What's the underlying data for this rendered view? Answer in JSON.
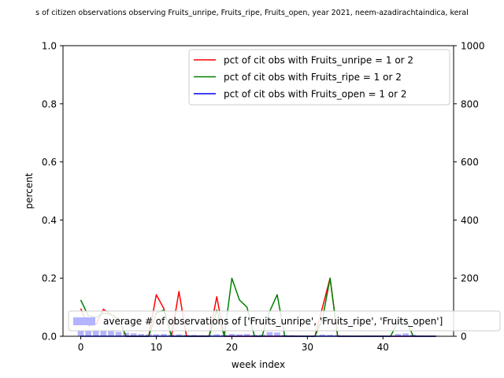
{
  "chart_data": {
    "type": "line",
    "title": "s of citizen observations observing Fruits_unripe, Fruits_ripe, Fruits_open, year 2021, neem-azadirachtaindica, keral",
    "xlabel": "week index",
    "ylabel": "percent",
    "xlim": [
      -2.35,
      49.35
    ],
    "ylim": [
      0,
      1
    ],
    "y2lim": [
      0,
      1000
    ],
    "x_ticks": [
      0,
      10,
      20,
      30,
      40
    ],
    "y_ticks": [
      0.0,
      0.2,
      0.4,
      0.6,
      0.8,
      1.0
    ],
    "y2_ticks": [
      0,
      200,
      400,
      600,
      800,
      1000
    ],
    "x_tick_labels": [
      "0",
      "10",
      "20",
      "30",
      "40"
    ],
    "y_tick_labels": [
      "0.0",
      "0.2",
      "0.4",
      "0.6",
      "0.8",
      "1.0"
    ],
    "y2_tick_labels": [
      "0",
      "200",
      "400",
      "600",
      "800",
      "1000"
    ],
    "x": [
      0,
      1,
      2,
      3,
      4,
      5,
      6,
      7,
      8,
      9,
      10,
      11,
      12,
      13,
      14,
      15,
      16,
      17,
      18,
      19,
      20,
      21,
      22,
      23,
      24,
      25,
      26,
      27,
      28,
      29,
      30,
      31,
      32,
      33,
      34,
      35,
      36,
      37,
      38,
      39,
      40,
      41,
      42,
      43,
      44,
      45,
      46,
      47
    ],
    "series": [
      {
        "name": "pct of cit obs with Fruits_unripe = 1 or 2",
        "color": "#ff0000",
        "values": [
          0.095,
          0.035,
          0.04,
          0.093,
          0.075,
          0.06,
          0.0,
          0.0,
          0.0,
          0.0,
          0.143,
          0.095,
          0.0,
          0.154,
          0.0,
          0.0,
          0.0,
          0.0,
          0.136,
          0.0,
          0.0,
          0.0,
          0.0,
          0.0,
          0.0,
          0.0,
          0.0,
          0.0,
          0.0,
          0.0,
          0.0,
          0.0,
          0.1,
          0.2,
          0.0,
          0.0,
          0.0,
          0.0,
          0.0,
          0.0,
          0.0,
          0.0,
          0.0,
          0.0,
          0.0,
          0.0,
          0.0,
          0.0
        ]
      },
      {
        "name": "pct of cit obs with Fruits_ripe = 1 or 2",
        "color": "#008000",
        "values": [
          0.125,
          0.07,
          0.065,
          0.08,
          0.075,
          0.06,
          0.0,
          0.0,
          0.0,
          0.0,
          0.08,
          0.09,
          0.0,
          0.0,
          0.0,
          0.0,
          0.0,
          0.0,
          0.09,
          0.0,
          0.2,
          0.125,
          0.1,
          0.0,
          0.0,
          0.085,
          0.143,
          0.0,
          0.0,
          0.0,
          0.0,
          0.0,
          0.06,
          0.2,
          0.0,
          0.0,
          0.0,
          0.0,
          0.0,
          0.0,
          0.0,
          0.0,
          0.05,
          0.06,
          0.0,
          0.0,
          0.0,
          0.0
        ]
      },
      {
        "name": "pct of cit obs with Fruits_open = 1 or 2",
        "color": "#0000ff",
        "values": [
          0.0,
          0.0,
          0.0,
          0.0,
          0.0,
          0.0,
          0.0,
          0.0,
          0.0,
          0.0,
          0.0,
          0.0,
          0.0,
          0.0,
          0.0,
          0.0,
          0.0,
          0.0,
          0.0,
          0.0,
          0.0,
          0.0,
          0.0,
          0.0,
          0.0,
          0.0,
          0.0,
          0.0,
          0.0,
          0.0,
          0.0,
          0.0,
          0.0,
          0.0,
          0.0,
          0.0,
          0.0,
          0.0,
          0.0,
          0.0,
          0.0,
          0.0,
          0.0,
          0.0,
          0.0,
          0.0,
          0.0,
          0.0
        ]
      }
    ],
    "bar_series": {
      "name": "average # of observations of ['Fruits_unripe', 'Fruits_ripe', 'Fruits_open']",
      "color": "#b3b3ff",
      "axis": "right",
      "values": [
        21,
        20,
        22,
        20,
        18,
        15,
        12,
        10,
        8,
        7,
        7,
        8,
        6,
        7,
        5,
        5,
        4,
        4,
        7,
        5,
        8,
        7,
        8,
        5,
        6,
        14,
        13,
        5,
        4,
        3,
        2,
        3,
        6,
        5,
        4,
        3,
        2,
        2,
        3,
        2,
        2,
        2,
        8,
        10,
        6,
        3,
        2,
        2
      ]
    },
    "legend_placement": "upper-right",
    "bar_legend_placement": "lower-center",
    "grid": false
  }
}
